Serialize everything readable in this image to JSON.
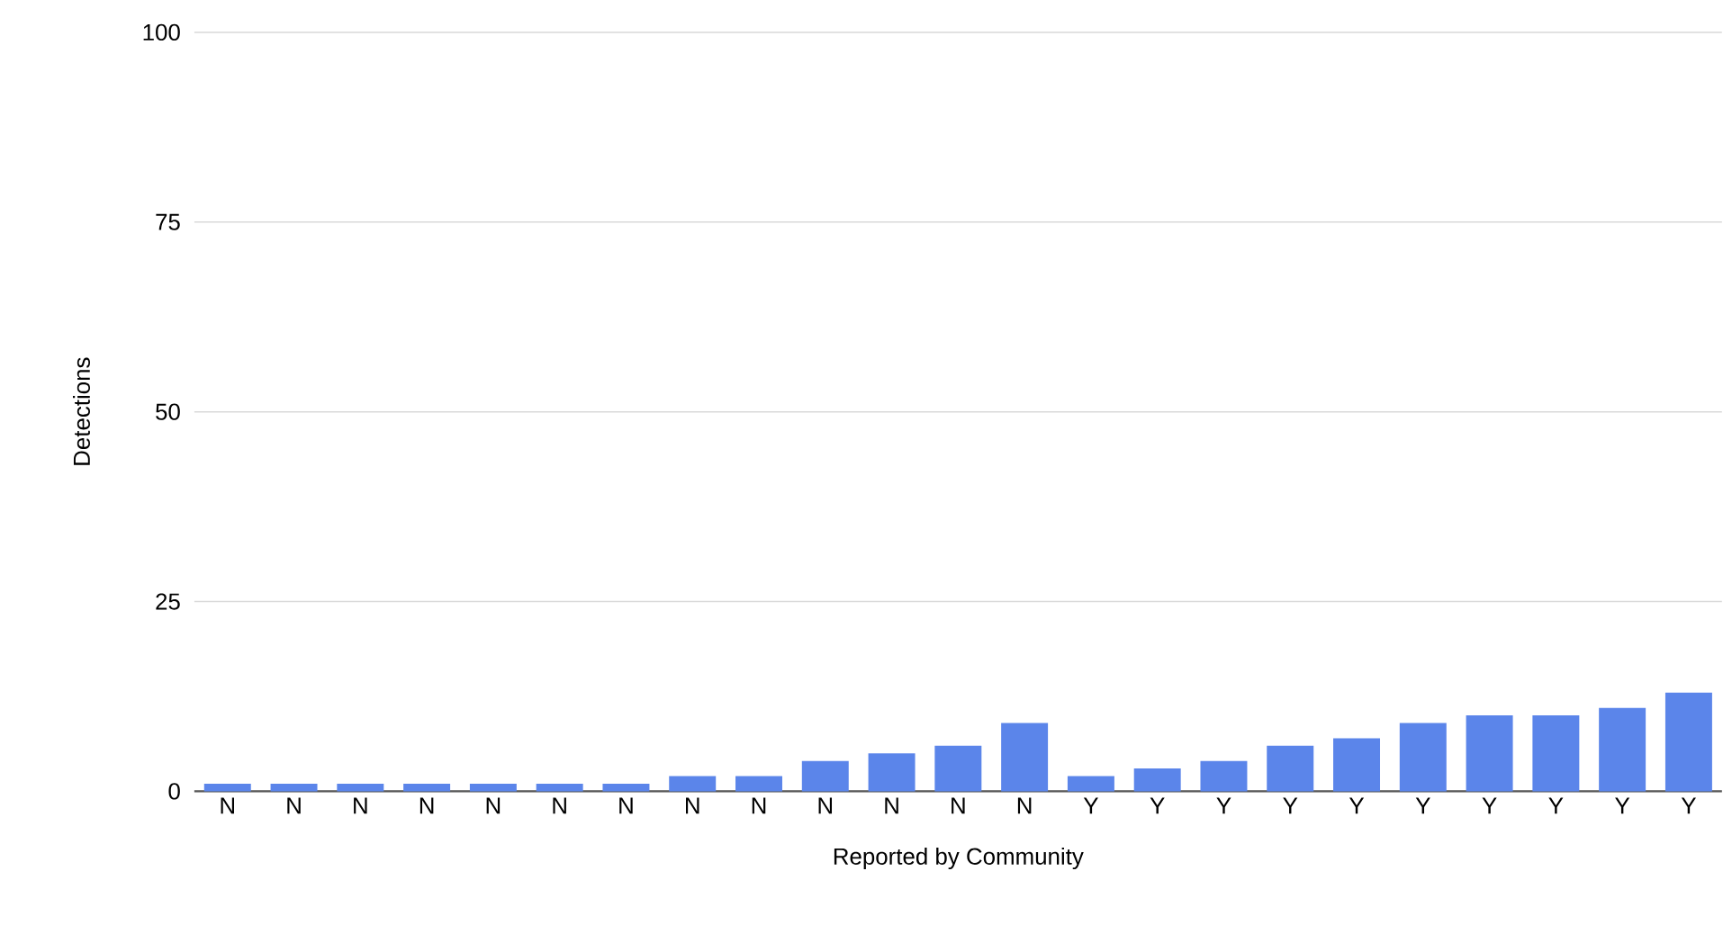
{
  "chart_data": {
    "type": "bar",
    "xlabel": "Reported by Community",
    "ylabel": "Detections",
    "categories": [
      "N",
      "N",
      "N",
      "N",
      "N",
      "N",
      "N",
      "N",
      "N",
      "N",
      "N",
      "N",
      "N",
      "Y",
      "Y",
      "Y",
      "Y",
      "Y",
      "Y",
      "Y",
      "Y",
      "Y",
      "Y"
    ],
    "values": [
      1,
      1,
      1,
      1,
      1,
      1,
      1,
      2,
      2,
      4,
      5,
      6,
      9,
      2,
      3,
      4,
      6,
      7,
      9,
      10,
      10,
      11,
      13
    ],
    "color": "#5b85ea",
    "ylim": [
      0,
      100
    ],
    "yticks": [
      0,
      25,
      50,
      75,
      100
    ],
    "grid": "y"
  }
}
